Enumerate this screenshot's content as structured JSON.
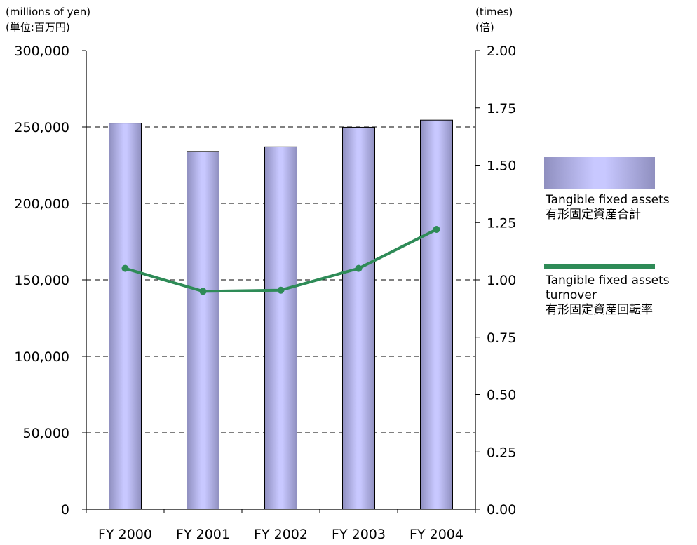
{
  "left_unit": {
    "en": "(millions of yen)",
    "ja": "(単位:百万円)"
  },
  "right_unit": {
    "en": "(times)",
    "ja": "(倍)"
  },
  "colors": {
    "bar_light": "#c8c8ff",
    "bar_dark": "#8f8fbf",
    "line": "#2e8b57",
    "grid": "#000000"
  },
  "legend": {
    "bar": {
      "en": "Tangible fixed assets",
      "ja": "有形固定資産合計"
    },
    "line": {
      "en_1": "Tangible fixed assets",
      "en_2": "turnover",
      "ja": "有形固定資産回転率"
    }
  },
  "chart_data": {
    "type": "bar",
    "categories": [
      "FY 2000",
      "FY 2001",
      "FY 2002",
      "FY 2003",
      "FY 2004"
    ],
    "series": [
      {
        "name": "Tangible fixed assets",
        "kind": "bar",
        "axis": "left",
        "values": [
          252500,
          234000,
          237000,
          249800,
          254500
        ]
      },
      {
        "name": "Tangible fixed assets turnover",
        "kind": "line",
        "axis": "right",
        "values": [
          1.05,
          0.95,
          0.955,
          1.05,
          1.22
        ]
      }
    ],
    "y_left": {
      "min": 0,
      "max": 300000,
      "ticks": [
        "0",
        "50,000",
        "100,000",
        "150,000",
        "200,000",
        "250,000",
        "300,000"
      ]
    },
    "y_right": {
      "min": 0,
      "max": 2.0,
      "ticks": [
        "0.00",
        "0.25",
        "0.50",
        "0.75",
        "1.00",
        "1.25",
        "1.50",
        "1.75",
        "2.00"
      ]
    },
    "grid": true,
    "legend_position": "right"
  }
}
